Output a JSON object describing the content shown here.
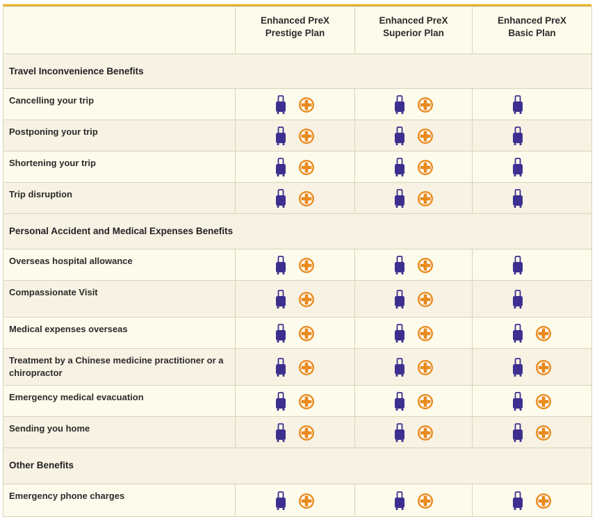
{
  "plans": [
    {
      "line1": "Enhanced PreX",
      "line2": "Prestige Plan"
    },
    {
      "line1": "Enhanced PreX",
      "line2": "Superior Plan"
    },
    {
      "line1": "Enhanced PreX",
      "line2": "Basic Plan"
    }
  ],
  "colors": {
    "top_bar": "#e8b22a",
    "luggage_icon": "#3d2f8f",
    "medical_icon": "#e98a1d",
    "row_light": "#fdfbec",
    "row_dark": "#f7f2e3"
  },
  "icons": {
    "luggage": "luggage-icon",
    "medical": "medical-cross-icon"
  },
  "sections": [
    {
      "title": "Travel Inconvenience Benefits",
      "rows": [
        {
          "label": "Cancelling your trip",
          "coverage": [
            [
              "luggage",
              "medical"
            ],
            [
              "luggage",
              "medical"
            ],
            [
              "luggage"
            ]
          ]
        },
        {
          "label": "Postponing your trip",
          "coverage": [
            [
              "luggage",
              "medical"
            ],
            [
              "luggage",
              "medical"
            ],
            [
              "luggage"
            ]
          ]
        },
        {
          "label": "Shortening your trip",
          "coverage": [
            [
              "luggage",
              "medical"
            ],
            [
              "luggage",
              "medical"
            ],
            [
              "luggage"
            ]
          ]
        },
        {
          "label": "Trip disruption",
          "coverage": [
            [
              "luggage",
              "medical"
            ],
            [
              "luggage",
              "medical"
            ],
            [
              "luggage"
            ]
          ]
        }
      ]
    },
    {
      "title": "Personal Accident and Medical Expenses Benefits",
      "rows": [
        {
          "label": "Overseas hospital allowance",
          "coverage": [
            [
              "luggage",
              "medical"
            ],
            [
              "luggage",
              "medical"
            ],
            [
              "luggage"
            ]
          ]
        },
        {
          "label": "Compassionate Visit",
          "coverage": [
            [
              "luggage",
              "medical"
            ],
            [
              "luggage",
              "medical"
            ],
            [
              "luggage"
            ]
          ]
        },
        {
          "label": "Medical expenses overseas",
          "coverage": [
            [
              "luggage",
              "medical"
            ],
            [
              "luggage",
              "medical"
            ],
            [
              "luggage",
              "medical"
            ]
          ]
        },
        {
          "label": "Treatment by a Chinese medicine practitioner or a chiropractor",
          "coverage": [
            [
              "luggage",
              "medical"
            ],
            [
              "luggage",
              "medical"
            ],
            [
              "luggage",
              "medical"
            ]
          ]
        },
        {
          "label": "Emergency medical evacuation",
          "coverage": [
            [
              "luggage",
              "medical"
            ],
            [
              "luggage",
              "medical"
            ],
            [
              "luggage",
              "medical"
            ]
          ]
        },
        {
          "label": "Sending you home",
          "coverage": [
            [
              "luggage",
              "medical"
            ],
            [
              "luggage",
              "medical"
            ],
            [
              "luggage",
              "medical"
            ]
          ]
        }
      ]
    },
    {
      "title": "Other Benefits",
      "rows": [
        {
          "label": "Emergency phone charges",
          "coverage": [
            [
              "luggage",
              "medical"
            ],
            [
              "luggage",
              "medical"
            ],
            [
              "luggage",
              "medical"
            ]
          ]
        }
      ]
    }
  ]
}
